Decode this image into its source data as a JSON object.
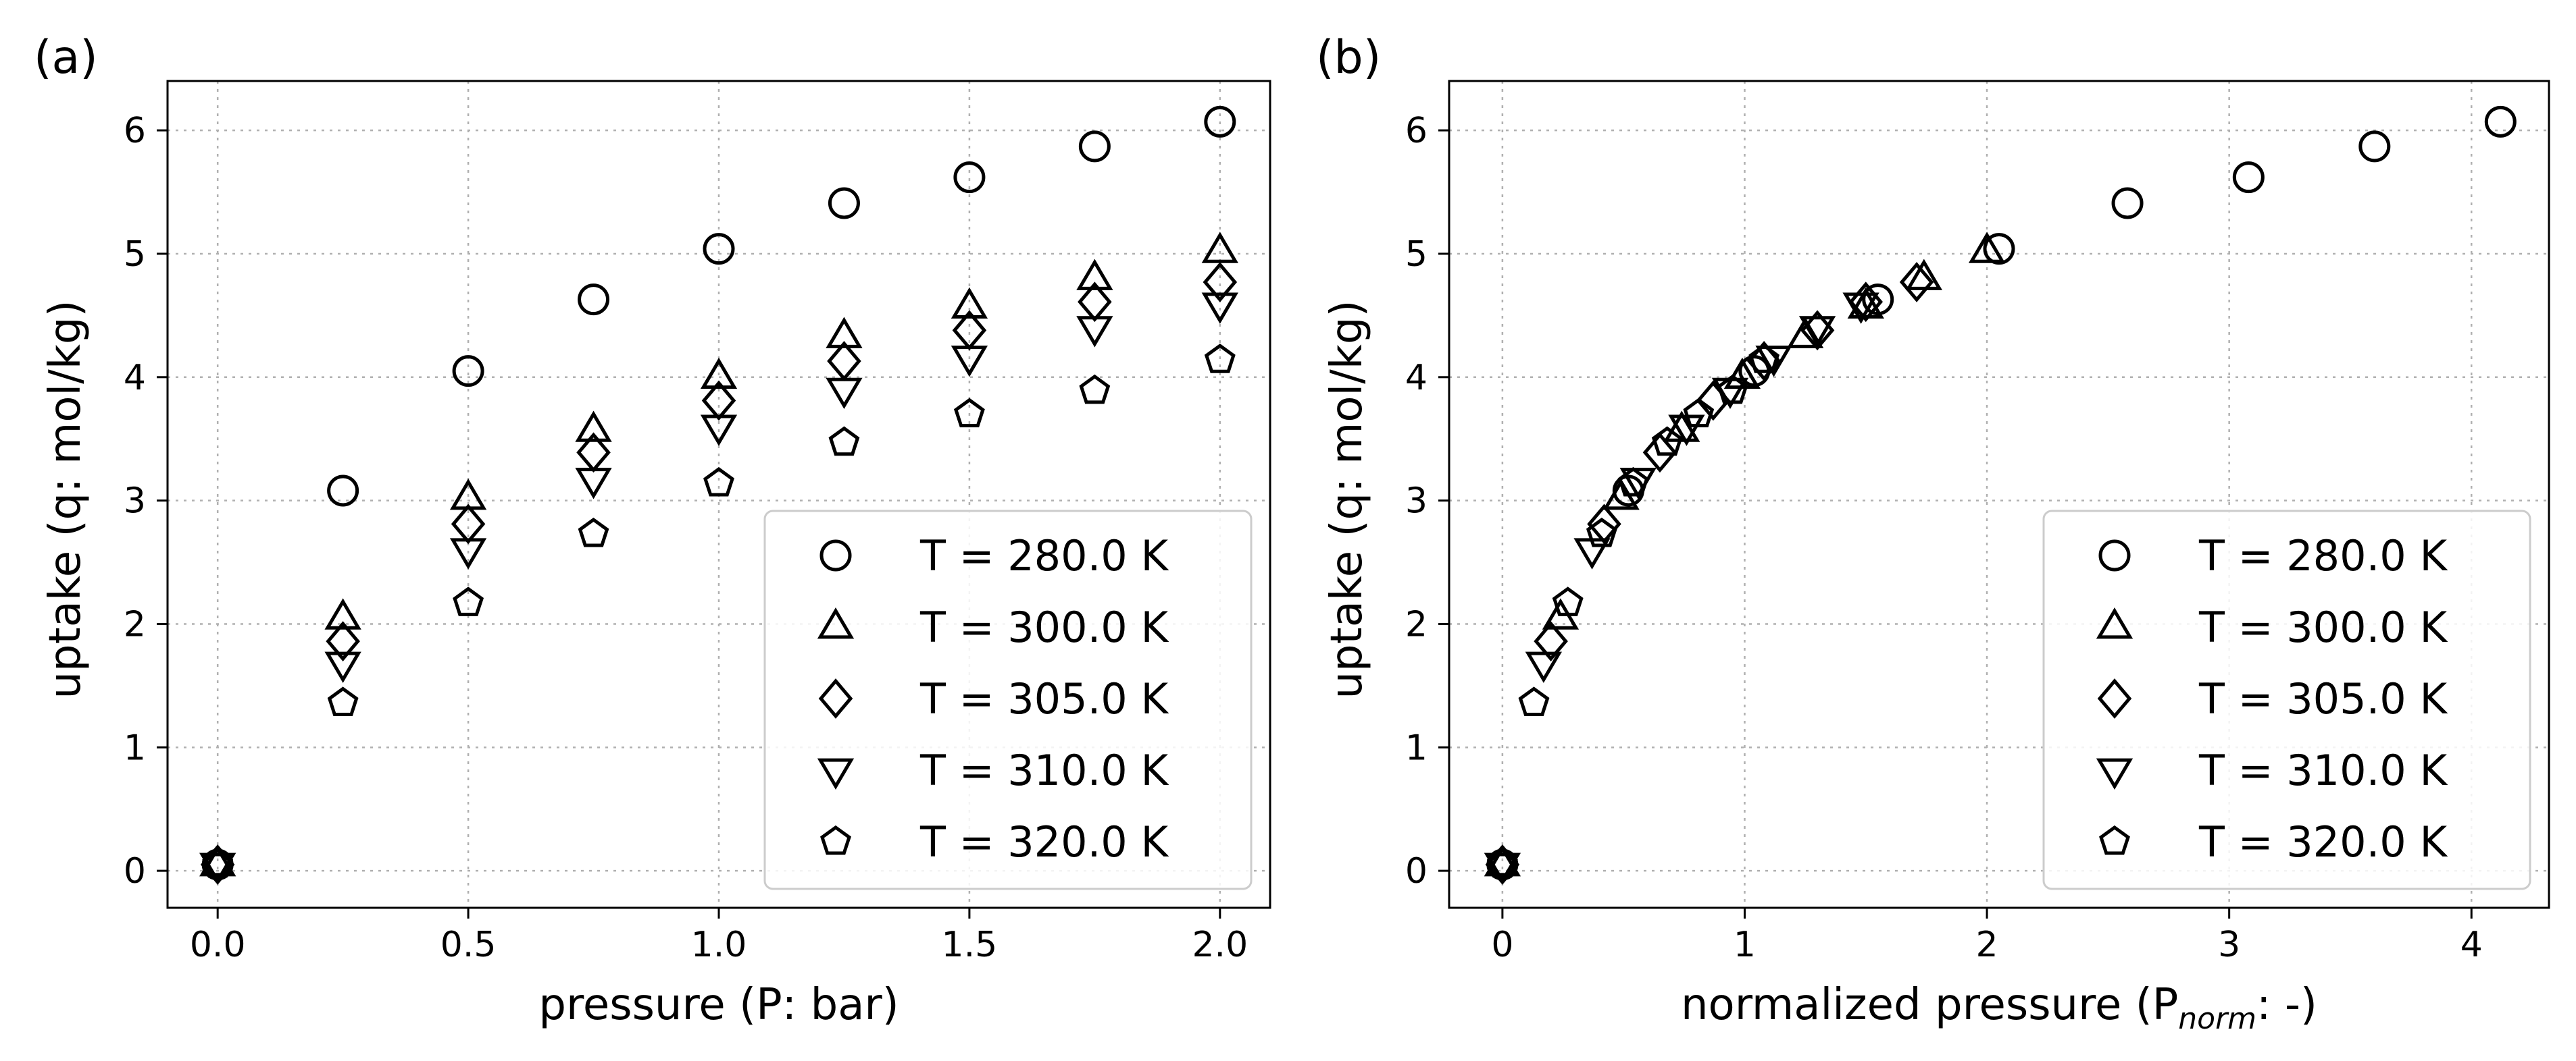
{
  "panels": [
    {
      "panel_label": "(a)",
      "xlabel": "pressure (P: bar)",
      "ylabel": "uptake (q: mol/kg)"
    },
    {
      "panel_label": "(b)",
      "xlabel_main": "normalized pressure (P",
      "xlabel_sub": "norm",
      "xlabel_end": ": -)",
      "ylabel": "uptake (q: mol/kg)"
    }
  ],
  "chart_data": [
    {
      "type": "scatter",
      "xlabel": "pressure (P: bar)",
      "ylabel": "uptake (q: mol/kg)",
      "xlim": [
        -0.1,
        2.1
      ],
      "ylim": [
        -0.3,
        6.4
      ],
      "xticks": [
        0.0,
        0.5,
        1.0,
        1.5,
        2.0
      ],
      "xtick_labels": [
        "0.0",
        "0.5",
        "1.0",
        "1.5",
        "2.0"
      ],
      "yticks": [
        0,
        1,
        2,
        3,
        4,
        5,
        6
      ],
      "ytick_labels": [
        "0",
        "1",
        "2",
        "3",
        "4",
        "5",
        "6"
      ],
      "grid": true,
      "legend_position": "lower-right",
      "series": [
        {
          "name": "T = 280.0 K",
          "marker": "circle",
          "x": [
            0,
            0.25,
            0.5,
            0.75,
            1.0,
            1.25,
            1.5,
            1.75,
            2.0
          ],
          "y": [
            0.05,
            3.08,
            4.05,
            4.63,
            5.04,
            5.41,
            5.62,
            5.87,
            6.07
          ]
        },
        {
          "name": "T = 300.0 K",
          "marker": "triangle-up",
          "x": [
            0,
            0.25,
            0.5,
            0.75,
            1.0,
            1.25,
            1.5,
            1.75,
            2.0
          ],
          "y": [
            0.05,
            2.05,
            3.02,
            3.57,
            4.0,
            4.33,
            4.57,
            4.8,
            5.02
          ]
        },
        {
          "name": "T = 305.0 K",
          "marker": "diamond",
          "x": [
            0,
            0.25,
            0.5,
            0.75,
            1.0,
            1.25,
            1.5,
            1.75,
            2.0
          ],
          "y": [
            0.05,
            1.86,
            2.81,
            3.39,
            3.81,
            4.13,
            4.38,
            4.61,
            4.77
          ]
        },
        {
          "name": "T = 310.0 K",
          "marker": "triangle-down",
          "x": [
            0,
            0.25,
            0.5,
            0.75,
            1.0,
            1.25,
            1.5,
            1.75,
            2.0
          ],
          "y": [
            0.05,
            1.68,
            2.6,
            3.17,
            3.6,
            3.9,
            4.16,
            4.4,
            4.59
          ]
        },
        {
          "name": "T = 320.0 K",
          "marker": "pentagon",
          "x": [
            0,
            0.25,
            0.5,
            0.75,
            1.0,
            1.25,
            1.5,
            1.75,
            2.0
          ],
          "y": [
            0.05,
            1.36,
            2.17,
            2.73,
            3.14,
            3.47,
            3.7,
            3.89,
            4.14
          ]
        }
      ]
    },
    {
      "type": "scatter",
      "xlabel": "normalized pressure (Pnorm: -)",
      "ylabel": "uptake (q: mol/kg)",
      "xlim": [
        -0.22,
        4.32
      ],
      "ylim": [
        -0.3,
        6.4
      ],
      "xticks": [
        0,
        1,
        2,
        3,
        4
      ],
      "xtick_labels": [
        "0",
        "1",
        "2",
        "3",
        "4"
      ],
      "yticks": [
        0,
        1,
        2,
        3,
        4,
        5,
        6
      ],
      "ytick_labels": [
        "0",
        "1",
        "2",
        "3",
        "4",
        "5",
        "6"
      ],
      "grid": true,
      "legend_position": "lower-right",
      "series": [
        {
          "name": "T = 280.0 K",
          "marker": "circle",
          "x": [
            0,
            0.52,
            1.04,
            1.55,
            2.05,
            2.58,
            3.08,
            3.6,
            4.12
          ],
          "y": [
            0.05,
            3.08,
            4.05,
            4.63,
            5.04,
            5.41,
            5.62,
            5.87,
            6.07
          ]
        },
        {
          "name": "T = 300.0 K",
          "marker": "triangle-up",
          "x": [
            0,
            0.24,
            0.49,
            0.74,
            0.99,
            1.25,
            1.5,
            1.74,
            2.0
          ],
          "y": [
            0.05,
            2.05,
            3.02,
            3.57,
            4.0,
            4.33,
            4.57,
            4.8,
            5.02
          ]
        },
        {
          "name": "T = 305.0 K",
          "marker": "diamond",
          "x": [
            0,
            0.2,
            0.42,
            0.65,
            0.87,
            1.08,
            1.3,
            1.5,
            1.71
          ],
          "y": [
            0.05,
            1.86,
            2.81,
            3.39,
            3.81,
            4.13,
            4.38,
            4.61,
            4.77
          ]
        },
        {
          "name": "T = 310.0 K",
          "marker": "triangle-down",
          "x": [
            0,
            0.17,
            0.37,
            0.56,
            0.76,
            0.94,
            1.12,
            1.3,
            1.48
          ],
          "y": [
            0.05,
            1.68,
            2.6,
            3.17,
            3.6,
            3.9,
            4.16,
            4.4,
            4.59
          ]
        },
        {
          "name": "T = 320.0 K",
          "marker": "pentagon",
          "x": [
            0,
            0.13,
            0.27,
            0.41,
            0.54,
            0.68,
            0.81,
            0.95,
            1.08
          ],
          "y": [
            0.05,
            1.36,
            2.17,
            2.73,
            3.14,
            3.47,
            3.7,
            3.89,
            4.14
          ]
        }
      ]
    }
  ]
}
